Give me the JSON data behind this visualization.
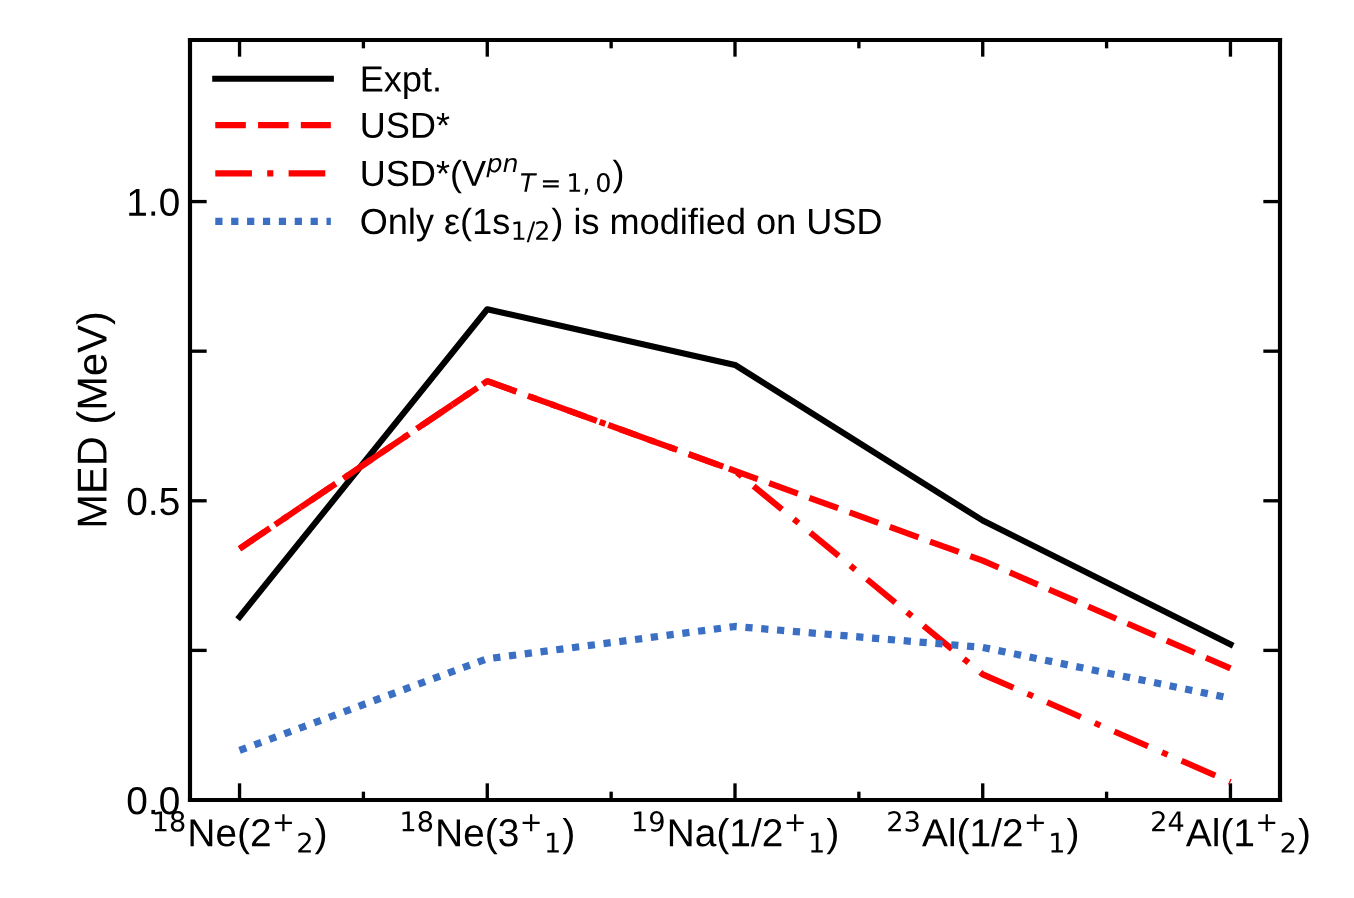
{
  "chart_data": {
    "type": "line",
    "ylabel": "MED (MeV)",
    "categories": [
      "$^{18}$Ne(2$^{+}$$_{2}$)",
      "$^{18}$Ne(3$^{+}$$_{1}$)",
      "$^{19}$Na(1/2$^{+}$$_{1}$)",
      "$^{23}$Al(1/2$^{+}$$_{1}$)",
      "$^{24}$Al(1$^{+}$$_{2}$)"
    ],
    "series": [
      {
        "name": "Expt.",
        "color": "#000000",
        "line_style": "solid",
        "values": [
          0.306,
          0.82,
          0.727,
          0.467,
          0.26
        ]
      },
      {
        "name": "USD*",
        "color": "#ff0000",
        "line_style": "dashed",
        "values": [
          0.42,
          0.7,
          0.55,
          0.4,
          0.22
        ]
      },
      {
        "name": "USD*(V$^{pn}$$_{T=1,0}$)",
        "color": "#ff0000",
        "line_style": "dashdot",
        "values": [
          0.42,
          0.7,
          0.55,
          0.21,
          0.03
        ]
      },
      {
        "name": "Only ε(1s$_{1/2}$) is modified on USD",
        "color": "#3a6fc4",
        "line_style": "dotted",
        "values": [
          0.083,
          0.236,
          0.29,
          0.255,
          0.17
        ]
      }
    ],
    "ylim": [
      0,
      1.27
    ],
    "yticks": [
      {
        "value": 0,
        "label": "0.0"
      },
      {
        "value": 0.25,
        "label": null
      },
      {
        "value": 0.5,
        "label": "0.5"
      },
      {
        "value": 0.75,
        "label": null
      },
      {
        "value": 1.0,
        "label": "1.0"
      }
    ],
    "grid": false,
    "legend": "top left",
    "marker": "none"
  }
}
